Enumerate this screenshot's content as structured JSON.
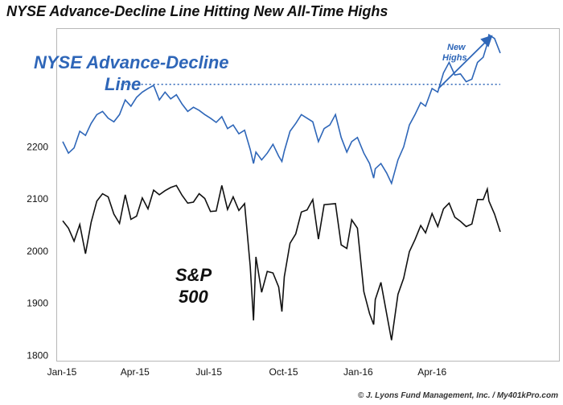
{
  "title": "NYSE Advance-Decline Line Hitting New All-Time Highs",
  "credit": "© J. Lyons Fund Management, Inc. / My401kPro.com",
  "colors": {
    "adl": "#2e66b8",
    "spx": "#111111",
    "ath_line": "#2e66b8",
    "annotation": "#2e66b8"
  },
  "chart_data": {
    "type": "line",
    "xlabel": "",
    "ylabel": "",
    "x_ticks": [
      "Jan-15",
      "Apr-15",
      "Jul-15",
      "Oct-15",
      "Jan-16",
      "Apr-16"
    ],
    "x_range": [
      "2015-01-02",
      "2016-06-24"
    ],
    "y_ticks": [
      1800,
      1900,
      2000,
      2100,
      2200
    ],
    "ylim": [
      1785,
      2420
    ],
    "grid": false,
    "annotations": [
      {
        "text_lines": [
          "NYSE Advance-Decline",
          "Line"
        ],
        "color": "#2e66b8"
      },
      {
        "text_lines": [
          "S&P",
          "500"
        ],
        "color": "#111111"
      },
      {
        "text_lines": [
          "New",
          "Highs"
        ],
        "color": "#2e66b8",
        "has_arrow": true
      }
    ],
    "reference_lines": [
      {
        "type": "horizontal-dotted",
        "y": 2320,
        "x_from": "2015-03-15",
        "x_to": "2016-06-24"
      }
    ],
    "series": [
      {
        "key": "spx",
        "x": [
          "2015-01-02",
          "2015-01-09",
          "2015-01-16",
          "2015-01-23",
          "2015-01-30",
          "2015-02-06",
          "2015-02-13",
          "2015-02-20",
          "2015-02-27",
          "2015-03-06",
          "2015-03-13",
          "2015-03-20",
          "2015-03-27",
          "2015-04-03",
          "2015-04-10",
          "2015-04-17",
          "2015-04-24",
          "2015-05-01",
          "2015-05-08",
          "2015-05-15",
          "2015-05-22",
          "2015-05-29",
          "2015-06-05",
          "2015-06-12",
          "2015-06-19",
          "2015-06-26",
          "2015-07-03",
          "2015-07-10",
          "2015-07-17",
          "2015-07-24",
          "2015-07-31",
          "2015-08-07",
          "2015-08-14",
          "2015-08-21",
          "2015-08-25",
          "2015-08-28",
          "2015-09-04",
          "2015-09-11",
          "2015-09-18",
          "2015-09-25",
          "2015-09-29",
          "2015-10-02",
          "2015-10-09",
          "2015-10-16",
          "2015-10-23",
          "2015-10-30",
          "2015-11-06",
          "2015-11-13",
          "2015-11-20",
          "2015-11-27",
          "2015-12-04",
          "2015-12-11",
          "2015-12-18",
          "2015-12-24",
          "2015-12-31",
          "2016-01-08",
          "2016-01-15",
          "2016-01-20",
          "2016-01-22",
          "2016-01-29",
          "2016-02-05",
          "2016-02-11",
          "2016-02-19",
          "2016-02-26",
          "2016-03-04",
          "2016-03-11",
          "2016-03-18",
          "2016-03-24",
          "2016-04-01",
          "2016-04-08",
          "2016-04-15",
          "2016-04-22",
          "2016-04-29",
          "2016-05-06",
          "2016-05-13",
          "2016-05-20",
          "2016-05-27",
          "2016-06-03",
          "2016-06-08",
          "2016-06-10",
          "2016-06-17",
          "2016-06-24"
        ],
        "values": [
          2058,
          2044,
          2019,
          2051,
          1995,
          2055,
          2096,
          2110,
          2104,
          2071,
          2053,
          2108,
          2061,
          2067,
          2102,
          2081,
          2117,
          2108,
          2116,
          2122,
          2126,
          2107,
          2092,
          2094,
          2110,
          2101,
          2076,
          2077,
          2126,
          2080,
          2104,
          2078,
          2091,
          1971,
          1867,
          1989,
          1921,
          1961,
          1958,
          1931,
          1884,
          1951,
          2015,
          2033,
          2075,
          2079,
          2099,
          2023,
          2089,
          2090,
          2091,
          2012,
          2005,
          2060,
          2044,
          1922,
          1880,
          1859,
          1907,
          1940,
          1880,
          1829,
          1917,
          1948,
          1999,
          2022,
          2049,
          2035,
          2072,
          2047,
          2081,
          2092,
          2065,
          2057,
          2047,
          2052,
          2099,
          2099,
          2119,
          2096,
          2071,
          2037
        ]
      },
      {
        "key": "adl",
        "x": [
          "2015-01-02",
          "2015-01-09",
          "2015-01-16",
          "2015-01-23",
          "2015-01-30",
          "2015-02-06",
          "2015-02-13",
          "2015-02-20",
          "2015-02-27",
          "2015-03-06",
          "2015-03-13",
          "2015-03-20",
          "2015-03-27",
          "2015-04-03",
          "2015-04-10",
          "2015-04-17",
          "2015-04-24",
          "2015-05-01",
          "2015-05-08",
          "2015-05-15",
          "2015-05-22",
          "2015-05-29",
          "2015-06-05",
          "2015-06-12",
          "2015-06-19",
          "2015-06-26",
          "2015-07-03",
          "2015-07-10",
          "2015-07-17",
          "2015-07-24",
          "2015-07-31",
          "2015-08-07",
          "2015-08-14",
          "2015-08-21",
          "2015-08-25",
          "2015-08-28",
          "2015-09-04",
          "2015-09-11",
          "2015-09-18",
          "2015-09-25",
          "2015-09-29",
          "2015-10-02",
          "2015-10-09",
          "2015-10-16",
          "2015-10-23",
          "2015-10-30",
          "2015-11-06",
          "2015-11-13",
          "2015-11-20",
          "2015-11-27",
          "2015-12-04",
          "2015-12-11",
          "2015-12-18",
          "2015-12-24",
          "2015-12-31",
          "2016-01-08",
          "2016-01-15",
          "2016-01-20",
          "2016-01-22",
          "2016-01-29",
          "2016-02-05",
          "2016-02-11",
          "2016-02-19",
          "2016-02-26",
          "2016-03-04",
          "2016-03-11",
          "2016-03-18",
          "2016-03-24",
          "2016-04-01",
          "2016-04-08",
          "2016-04-15",
          "2016-04-22",
          "2016-04-29",
          "2016-05-06",
          "2016-05-13",
          "2016-05-20",
          "2016-05-27",
          "2016-06-03",
          "2016-06-08",
          "2016-06-10",
          "2016-06-17",
          "2016-06-24"
        ],
        "values": [
          2210,
          2188,
          2198,
          2230,
          2222,
          2245,
          2262,
          2268,
          2255,
          2248,
          2262,
          2290,
          2278,
          2295,
          2305,
          2312,
          2318,
          2290,
          2305,
          2292,
          2300,
          2282,
          2268,
          2276,
          2270,
          2262,
          2255,
          2247,
          2258,
          2235,
          2242,
          2225,
          2232,
          2195,
          2168,
          2190,
          2175,
          2188,
          2205,
          2182,
          2172,
          2192,
          2230,
          2245,
          2262,
          2255,
          2248,
          2210,
          2235,
          2242,
          2262,
          2218,
          2190,
          2210,
          2218,
          2188,
          2168,
          2140,
          2158,
          2168,
          2150,
          2130,
          2175,
          2200,
          2242,
          2262,
          2285,
          2278,
          2312,
          2305,
          2342,
          2362,
          2338,
          2340,
          2325,
          2330,
          2362,
          2372,
          2398,
          2415,
          2408,
          2380
        ]
      }
    ]
  }
}
